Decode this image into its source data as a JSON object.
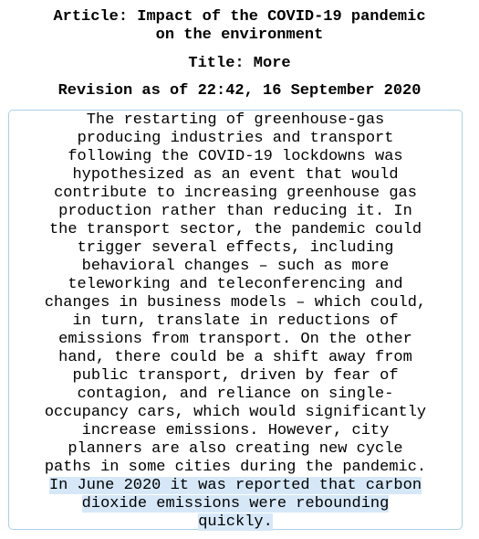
{
  "header": {
    "article_label": "Article: Impact of the COVID-19 pandemic",
    "article_label_cont": "on the environment",
    "title_label": "Title: More",
    "revision_label": "Revision as of 22:42, 16 September 2020"
  },
  "content": {
    "lines": [
      "The restarting of greenhouse-gas",
      "producing industries and transport",
      "following the COVID-19 lockdowns was",
      "hypothesized as an event that would",
      "contribute to increasing greenhouse gas",
      "production rather than reducing it. In",
      "the transport sector, the pandemic could",
      "trigger several effects, including",
      "behavioral changes – such as more",
      "teleworking and teleconferencing and",
      "changes in business models – which could,",
      "in turn, translate in reductions of",
      "emissions from transport. On the other",
      "hand, there could be a shift away from",
      "public transport, driven by fear of",
      "contagion, and reliance on single-",
      "occupancy cars, which would significantly",
      "increase emissions. However, city",
      "planners are also creating new cycle",
      "paths in some cities during the pandemic."
    ],
    "highlighted_lines": [
      "In June 2020 it was reported that carbon",
      "dioxide emissions were rebounding",
      "quickly."
    ],
    "highlight_color": "#d6e8f8",
    "border_color": "#a9d0ea"
  }
}
